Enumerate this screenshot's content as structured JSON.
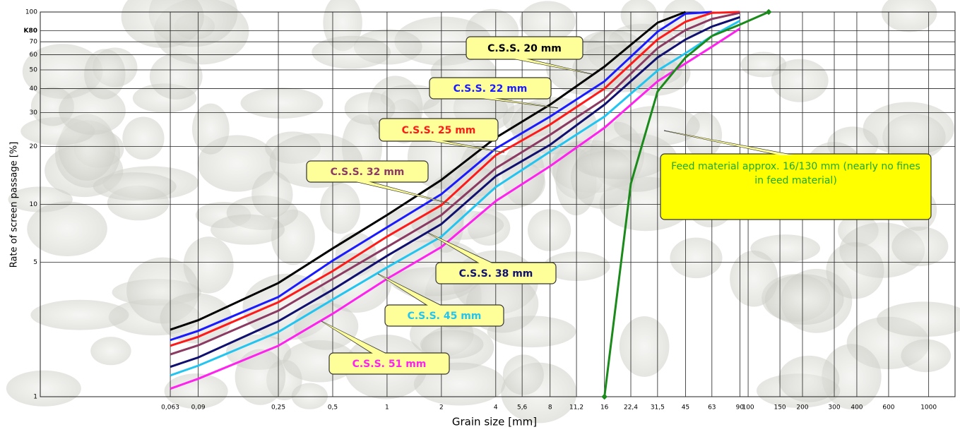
{
  "chart_data": {
    "type": "line",
    "x_label": "Grain size [mm]",
    "y_label": "Rate of screen passage [%]",
    "log_x": true,
    "log_y": true,
    "grid": true,
    "xlim": [
      0.012,
      1400
    ],
    "ylim": [
      1,
      100
    ],
    "xticks": [
      {
        "value": 0.063,
        "label": "0,063"
      },
      {
        "value": 0.09,
        "label": "0,09"
      },
      {
        "value": 0.25,
        "label": "0,25"
      },
      {
        "value": 0.5,
        "label": "0,5"
      },
      1,
      2,
      4,
      {
        "value": 5.6,
        "label": "5,6"
      },
      8,
      {
        "value": 11.2,
        "label": "11,2"
      },
      16,
      {
        "value": 22.4,
        "label": "22,4"
      },
      {
        "value": 31.5,
        "label": "31,5"
      },
      45,
      63,
      90,
      100,
      150,
      200,
      300,
      400,
      600,
      1000
    ],
    "yticks": [
      1,
      5,
      10,
      20,
      30,
      40,
      50,
      60,
      70,
      {
        "value": 80,
        "label": "K80"
      },
      100
    ],
    "x": [
      0.063,
      0.09,
      0.25,
      0.5,
      1,
      2,
      4,
      8,
      16,
      31.5,
      45,
      63,
      90
    ],
    "series": [
      {
        "name": "C.S.S. 20 mm",
        "color": "#000000",
        "values": [
          2.23,
          2.5,
          3.9,
          5.9,
          8.8,
          13.4,
          22.2,
          33,
          52,
          88,
          100,
          null,
          null
        ]
      },
      {
        "name": "C.S.S. 22 mm",
        "color": "#1a1aff",
        "values": [
          1.97,
          2.2,
          3.3,
          5.1,
          7.6,
          11.3,
          19.5,
          28.6,
          43.6,
          79,
          98,
          100,
          null
        ]
      },
      {
        "name": "C.S.S. 25 mm",
        "color": "#ff1a1a",
        "values": [
          1.84,
          2.05,
          3.1,
          4.5,
          6.8,
          9.9,
          18,
          26,
          40,
          72,
          89,
          99,
          100
        ]
      },
      {
        "name": "C.S.S. 32 mm",
        "color": "#8b3a62",
        "values": [
          1.66,
          1.85,
          2.8,
          4.1,
          6,
          8.8,
          15.4,
          23,
          35.3,
          64.9,
          80.6,
          92,
          99
        ]
      },
      {
        "name": "C.S.S. 38 mm",
        "color": "#101070",
        "values": [
          1.43,
          1.6,
          2.47,
          3.6,
          5.4,
          7.9,
          14,
          20.4,
          33,
          58,
          72,
          84,
          94
        ]
      },
      {
        "name": "C.S.S. 45 mm",
        "color": "#22c4f0",
        "values": [
          1.29,
          1.45,
          2.17,
          3.2,
          4.7,
          6.8,
          12.3,
          18.8,
          28.6,
          49.6,
          61,
          75,
          90
        ]
      },
      {
        "name": "C.S.S. 51 mm",
        "color": "#ff22ee",
        "values": [
          1.1,
          1.24,
          1.84,
          2.7,
          4.1,
          6,
          10.4,
          15.8,
          25,
          43.6,
          54,
          66,
          82
        ]
      }
    ],
    "feed": {
      "name": "Feed material approx. 16/130 mm (nearly no fines in feed material)",
      "color": "#1a8a1a",
      "x": [
        16,
        22.4,
        31.5,
        45,
        63,
        90,
        130
      ],
      "values": [
        1,
        12.8,
        38.6,
        58,
        75,
        86,
        100
      ]
    }
  }
}
